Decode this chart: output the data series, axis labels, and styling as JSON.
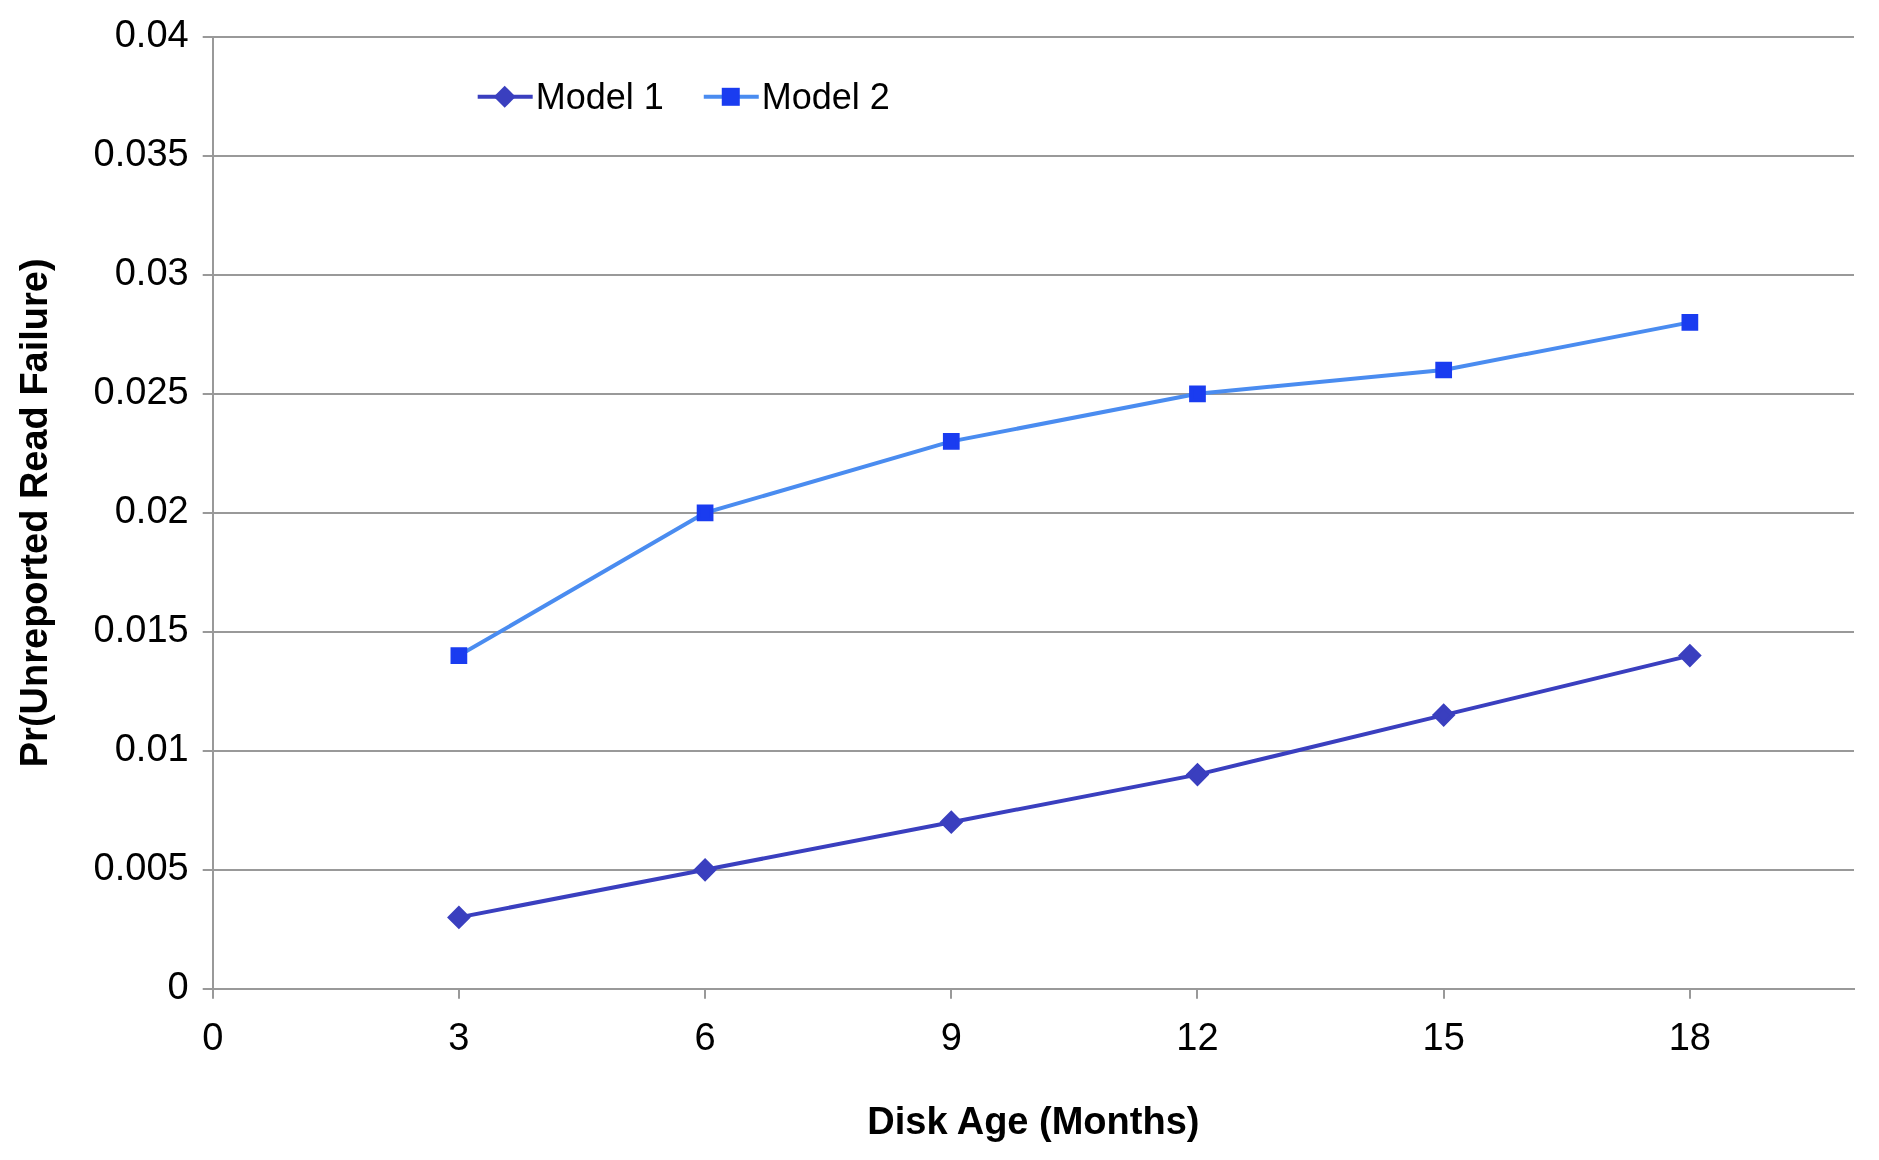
{
  "chart_data": {
    "type": "line",
    "xlabel": "Disk Age (Months)",
    "ylabel": "Pr(Unreported Read Failure)",
    "x": [
      3,
      6,
      9,
      12,
      15,
      18
    ],
    "series": [
      {
        "name": "Model 1",
        "color": "#3a3fbf",
        "marker": "diamond",
        "values": [
          0.003,
          0.005,
          0.007,
          0.009,
          0.0115,
          0.014
        ]
      },
      {
        "name": "Model 2",
        "color": "#4a8cf0",
        "marker": "square",
        "values": [
          0.014,
          0.02,
          0.023,
          0.025,
          0.026,
          0.028
        ]
      }
    ],
    "xlim": [
      0,
      20
    ],
    "xticks": [
      0,
      3,
      6,
      9,
      12,
      15,
      18
    ],
    "ylim": [
      0,
      0.04
    ],
    "yticks": [
      0,
      0.005,
      0.01,
      0.015,
      0.02,
      0.025,
      0.03,
      0.035,
      0.04
    ],
    "grid": "y",
    "legend": "top left",
    "line_style": "solid"
  }
}
